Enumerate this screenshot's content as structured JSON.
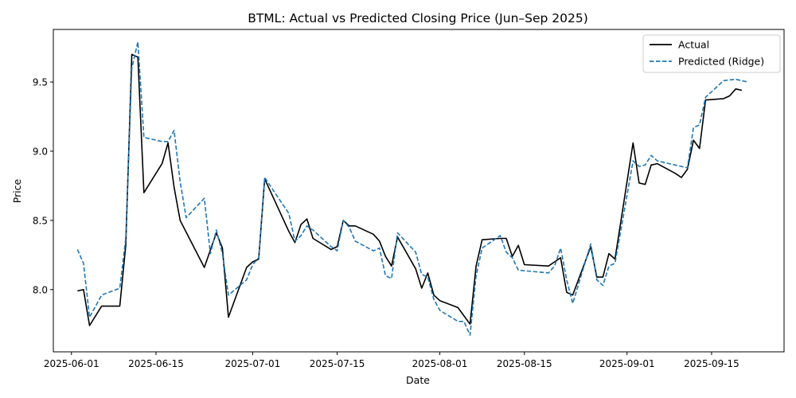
{
  "chart_data": {
    "type": "line",
    "title": "BTML: Actual vs Predicted Closing Price (Jun–Sep 2025)",
    "xlabel": "Date",
    "ylabel": "Price",
    "xlim": [
      "2025-05-29",
      "2025-09-27"
    ],
    "ylim": [
      7.55,
      9.88
    ],
    "grid": false,
    "legend": "upper right",
    "x_ticks": [
      "2025-06-01",
      "2025-06-15",
      "2025-07-01",
      "2025-07-15",
      "2025-08-01",
      "2025-08-15",
      "2025-09-01",
      "2025-09-15"
    ],
    "y_ticks": [
      8.0,
      8.5,
      9.0,
      9.5
    ],
    "y_tick_labels": [
      "8.0",
      "8.5",
      "9.0",
      "9.5"
    ],
    "series": [
      {
        "name": "Actual",
        "color": "#000000",
        "dash": "solid",
        "points": [
          [
            "2025-06-02",
            7.99
          ],
          [
            "2025-06-03",
            8.0
          ],
          [
            "2025-06-04",
            7.74
          ],
          [
            "2025-06-06",
            7.88
          ],
          [
            "2025-06-09",
            7.88
          ],
          [
            "2025-06-10",
            8.32
          ],
          [
            "2025-06-11",
            9.7
          ],
          [
            "2025-06-12",
            9.68
          ],
          [
            "2025-06-13",
            8.7
          ],
          [
            "2025-06-16",
            8.91
          ],
          [
            "2025-06-17",
            9.06
          ],
          [
            "2025-06-18",
            8.74
          ],
          [
            "2025-06-19",
            8.5
          ],
          [
            "2025-06-23",
            8.16
          ],
          [
            "2025-06-25",
            8.41
          ],
          [
            "2025-06-26",
            8.3
          ],
          [
            "2025-06-27",
            7.8
          ],
          [
            "2025-06-30",
            8.16
          ],
          [
            "2025-07-01",
            8.2
          ],
          [
            "2025-07-02",
            8.22
          ],
          [
            "2025-07-03",
            8.8
          ],
          [
            "2025-07-07",
            8.42
          ],
          [
            "2025-07-08",
            8.34
          ],
          [
            "2025-07-09",
            8.47
          ],
          [
            "2025-07-10",
            8.51
          ],
          [
            "2025-07-11",
            8.37
          ],
          [
            "2025-07-14",
            8.29
          ],
          [
            "2025-07-15",
            8.31
          ],
          [
            "2025-07-16",
            8.5
          ],
          [
            "2025-07-17",
            8.46
          ],
          [
            "2025-07-18",
            8.46
          ],
          [
            "2025-07-21",
            8.4
          ],
          [
            "2025-07-22",
            8.35
          ],
          [
            "2025-07-23",
            8.24
          ],
          [
            "2025-07-24",
            8.17
          ],
          [
            "2025-07-25",
            8.38
          ],
          [
            "2025-07-28",
            8.15
          ],
          [
            "2025-07-29",
            8.01
          ],
          [
            "2025-07-30",
            8.12
          ],
          [
            "2025-07-31",
            7.96
          ],
          [
            "2025-08-01",
            7.92
          ],
          [
            "2025-08-04",
            7.87
          ],
          [
            "2025-08-06",
            7.75
          ],
          [
            "2025-08-07",
            8.17
          ],
          [
            "2025-08-08",
            8.36
          ],
          [
            "2025-08-11",
            8.37
          ],
          [
            "2025-08-12",
            8.37
          ],
          [
            "2025-08-13",
            8.24
          ],
          [
            "2025-08-14",
            8.32
          ],
          [
            "2025-08-15",
            8.18
          ],
          [
            "2025-08-19",
            8.17
          ],
          [
            "2025-08-20",
            8.2
          ],
          [
            "2025-08-21",
            8.23
          ],
          [
            "2025-08-22",
            7.98
          ],
          [
            "2025-08-23",
            7.96
          ],
          [
            "2025-08-26",
            8.31
          ],
          [
            "2025-08-27",
            8.09
          ],
          [
            "2025-08-28",
            8.09
          ],
          [
            "2025-08-29",
            8.26
          ],
          [
            "2025-08-30",
            8.22
          ],
          [
            "2025-09-02",
            9.06
          ],
          [
            "2025-09-03",
            8.77
          ],
          [
            "2025-09-04",
            8.76
          ],
          [
            "2025-09-05",
            8.9
          ],
          [
            "2025-09-06",
            8.91
          ],
          [
            "2025-09-09",
            8.84
          ],
          [
            "2025-09-10",
            8.81
          ],
          [
            "2025-09-11",
            8.87
          ],
          [
            "2025-09-12",
            9.08
          ],
          [
            "2025-09-13",
            9.02
          ],
          [
            "2025-09-14",
            9.37
          ],
          [
            "2025-09-17",
            9.38
          ],
          [
            "2025-09-18",
            9.4
          ],
          [
            "2025-09-19",
            9.45
          ],
          [
            "2025-09-20",
            9.44
          ]
        ]
      },
      {
        "name": "Predicted (Ridge)",
        "color": "#1f77b4",
        "dash": "dashed",
        "points": [
          [
            "2025-06-02",
            8.29
          ],
          [
            "2025-06-03",
            8.19
          ],
          [
            "2025-06-04",
            7.8
          ],
          [
            "2025-06-06",
            7.96
          ],
          [
            "2025-06-09",
            8.01
          ],
          [
            "2025-06-10",
            8.37
          ],
          [
            "2025-06-11",
            9.6
          ],
          [
            "2025-06-12",
            9.79
          ],
          [
            "2025-06-13",
            9.1
          ],
          [
            "2025-06-16",
            9.07
          ],
          [
            "2025-06-17",
            9.07
          ],
          [
            "2025-06-18",
            9.15
          ],
          [
            "2025-06-19",
            8.78
          ],
          [
            "2025-06-20",
            8.52
          ],
          [
            "2025-06-23",
            8.66
          ],
          [
            "2025-06-24",
            8.26
          ],
          [
            "2025-06-25",
            8.43
          ],
          [
            "2025-06-26",
            8.26
          ],
          [
            "2025-06-27",
            7.96
          ],
          [
            "2025-06-30",
            8.07
          ],
          [
            "2025-07-01",
            8.18
          ],
          [
            "2025-07-02",
            8.23
          ],
          [
            "2025-07-03",
            8.81
          ],
          [
            "2025-07-07",
            8.55
          ],
          [
            "2025-07-08",
            8.35
          ],
          [
            "2025-07-09",
            8.39
          ],
          [
            "2025-07-10",
            8.46
          ],
          [
            "2025-07-11",
            8.43
          ],
          [
            "2025-07-14",
            8.31
          ],
          [
            "2025-07-15",
            8.28
          ],
          [
            "2025-07-16",
            8.5
          ],
          [
            "2025-07-17",
            8.45
          ],
          [
            "2025-07-18",
            8.35
          ],
          [
            "2025-07-21",
            8.28
          ],
          [
            "2025-07-22",
            8.3
          ],
          [
            "2025-07-23",
            8.1
          ],
          [
            "2025-07-24",
            8.08
          ],
          [
            "2025-07-25",
            8.41
          ],
          [
            "2025-07-28",
            8.27
          ],
          [
            "2025-07-29",
            8.11
          ],
          [
            "2025-07-30",
            8.09
          ],
          [
            "2025-07-31",
            7.93
          ],
          [
            "2025-08-01",
            7.85
          ],
          [
            "2025-08-04",
            7.77
          ],
          [
            "2025-08-05",
            7.77
          ],
          [
            "2025-08-06",
            7.67
          ],
          [
            "2025-08-07",
            8.1
          ],
          [
            "2025-08-08",
            8.3
          ],
          [
            "2025-08-11",
            8.39
          ],
          [
            "2025-08-12",
            8.27
          ],
          [
            "2025-08-13",
            8.23
          ],
          [
            "2025-08-14",
            8.14
          ],
          [
            "2025-08-19",
            8.12
          ],
          [
            "2025-08-20",
            8.17
          ],
          [
            "2025-08-21",
            8.3
          ],
          [
            "2025-08-22",
            8.07
          ],
          [
            "2025-08-23",
            7.9
          ],
          [
            "2025-08-26",
            8.33
          ],
          [
            "2025-08-27",
            8.07
          ],
          [
            "2025-08-28",
            8.03
          ],
          [
            "2025-08-29",
            8.17
          ],
          [
            "2025-08-30",
            8.19
          ],
          [
            "2025-09-02",
            8.93
          ],
          [
            "2025-09-03",
            8.89
          ],
          [
            "2025-09-04",
            8.9
          ],
          [
            "2025-09-05",
            8.97
          ],
          [
            "2025-09-06",
            8.93
          ],
          [
            "2025-09-10",
            8.89
          ],
          [
            "2025-09-11",
            8.88
          ],
          [
            "2025-09-12",
            9.17
          ],
          [
            "2025-09-13",
            9.19
          ],
          [
            "2025-09-14",
            9.39
          ],
          [
            "2025-09-16",
            9.47
          ],
          [
            "2025-09-17",
            9.51
          ],
          [
            "2025-09-19",
            9.52
          ],
          [
            "2025-09-21",
            9.5
          ]
        ]
      }
    ]
  }
}
